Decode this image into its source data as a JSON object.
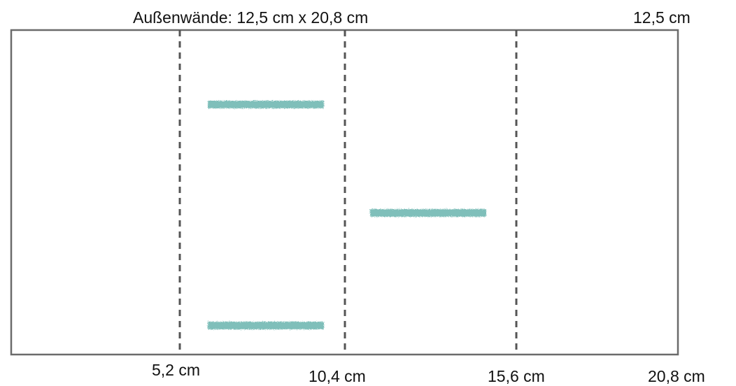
{
  "title": "Außenwände: 12,5 cm x 20,8 cm",
  "height_label": "12,5 cm",
  "x_labels": [
    "5,2 cm",
    "10,4 cm",
    "15,6 cm",
    "20,8 cm"
  ],
  "colors": {
    "frame": "#6b6b6b",
    "dashed_line": "#555555",
    "mark": "#7fbfba",
    "text": "#111111"
  }
}
